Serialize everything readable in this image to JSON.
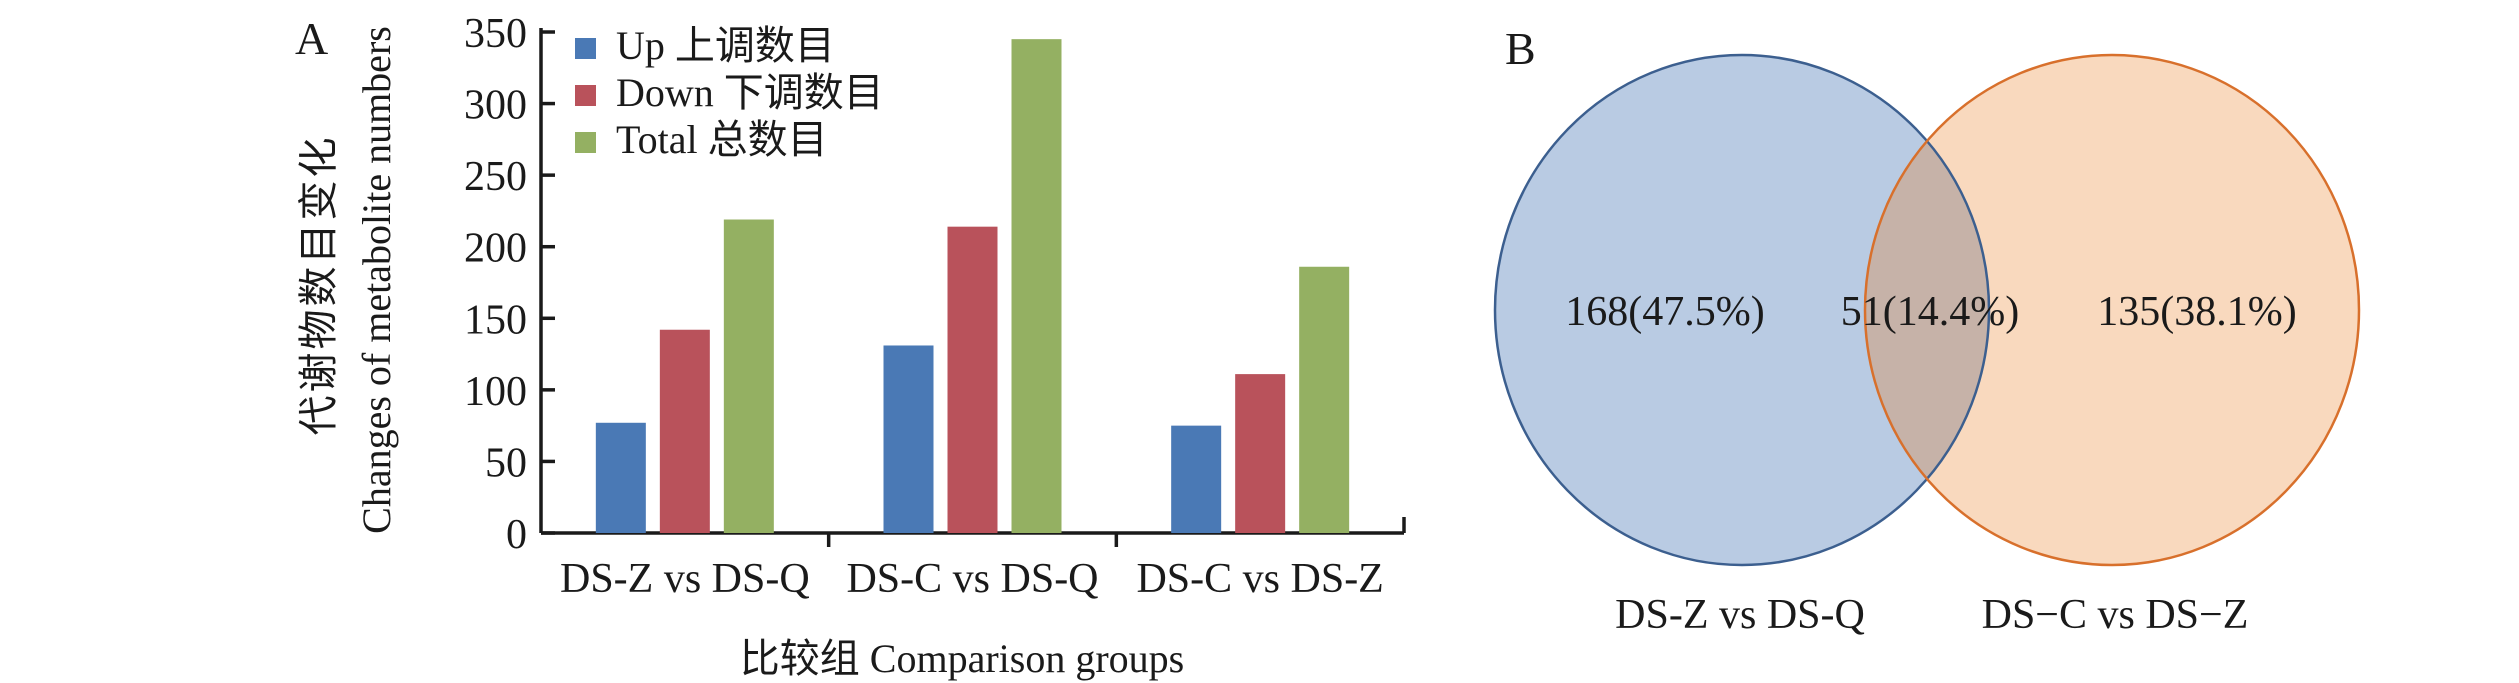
{
  "figure": {
    "panel_a_label": "A",
    "panel_b_label": "B"
  },
  "chart_data": [
    {
      "type": "bar",
      "title": "",
      "categories": [
        "DS-Z vs DS-Q",
        "DS-C vs DS-Q",
        "DS-C vs DS-Z"
      ],
      "series": [
        {
          "name": "Up 上调数目",
          "color": "#4a79b5",
          "values": [
            77,
            131,
            75
          ]
        },
        {
          "name": "Down 下调数目",
          "color": "#b9525b",
          "values": [
            142,
            214,
            111
          ]
        },
        {
          "name": "Total 总数目",
          "color": "#94b062",
          "values": [
            219,
            345,
            186
          ]
        }
      ],
      "ylabel_zh": "代谢物数目变化",
      "ylabel_en": "Changes of metabolite numbers",
      "xlabel": "比较组 Comparison groups",
      "ylim": [
        0,
        350
      ],
      "yticks": [
        0,
        50,
        100,
        150,
        200,
        250,
        300,
        350
      ],
      "grid": false,
      "legend_position": "top-left-inside"
    },
    {
      "type": "venn",
      "sets": [
        {
          "label": "DS-Z vs DS-Q",
          "display": "168(47.5%)",
          "count": 168,
          "percent": 47.5,
          "fill": "#b9cbe3",
          "stroke": "#3c5f8f"
        },
        {
          "label": "DS−C vs DS−Z",
          "display": "135(38.1%)",
          "count": 135,
          "percent": 38.1,
          "fill": "#f9d9be",
          "stroke": "#d8702c"
        }
      ],
      "overlap": {
        "display": "51(14.4%)",
        "count": 51,
        "percent": 14.4,
        "fill": "#c6b2a8"
      }
    }
  ]
}
